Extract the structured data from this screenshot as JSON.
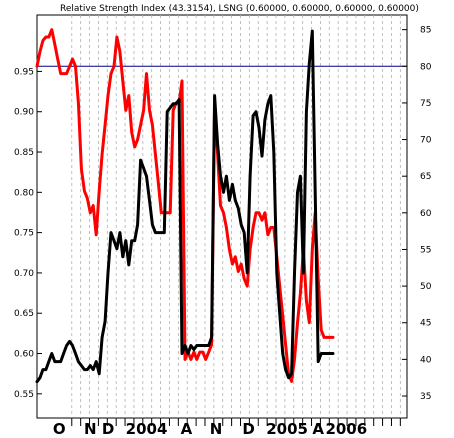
{
  "chart_data": {
    "type": "line",
    "title": "Relative Strength Index (43.3154), LSNG (0.60000, 0.60000, 0.60000, 0.60000)",
    "left_axis": {
      "ticks": [
        "0.55",
        "0.60",
        "0.65",
        "0.70",
        "0.75",
        "0.80",
        "0.85",
        "0.90",
        "0.95"
      ],
      "ylim": [
        0.52,
        1.02
      ]
    },
    "right_axis": {
      "ticks": [
        "35",
        "40",
        "45",
        "50",
        "55",
        "60",
        "65",
        "70",
        "75",
        "80",
        "85"
      ],
      "ylim": [
        32,
        87
      ]
    },
    "x_labels": [
      "O",
      "N",
      "D",
      "2004",
      "A",
      "N",
      "D",
      "2005",
      "A",
      "2006"
    ],
    "reference_line": {
      "axis": "right",
      "value": 80,
      "color": "#00008b"
    },
    "series": [
      {
        "axis": "right",
        "color": "#ff0000",
        "points": [
          [
            0,
            80
          ],
          [
            2,
            82
          ],
          [
            4,
            83.5
          ],
          [
            6,
            84
          ],
          [
            8,
            84
          ],
          [
            10,
            85
          ],
          [
            12,
            83
          ],
          [
            14,
            81
          ],
          [
            16,
            79
          ],
          [
            18,
            79
          ],
          [
            20,
            79
          ],
          [
            22,
            80
          ],
          [
            24,
            81
          ],
          [
            26,
            80
          ],
          [
            28,
            75
          ],
          [
            30,
            66
          ],
          [
            32,
            63
          ],
          [
            34,
            62
          ],
          [
            36,
            60
          ],
          [
            38,
            61
          ],
          [
            40,
            57
          ],
          [
            42,
            63
          ],
          [
            44,
            68
          ],
          [
            46,
            72
          ],
          [
            48,
            76
          ],
          [
            50,
            79
          ],
          [
            52,
            80
          ],
          [
            54,
            84
          ],
          [
            56,
            82
          ],
          [
            58,
            78
          ],
          [
            60,
            74
          ],
          [
            62,
            76
          ],
          [
            64,
            71
          ],
          [
            66,
            69
          ],
          [
            68,
            70
          ],
          [
            70,
            72
          ],
          [
            72,
            74
          ],
          [
            74,
            79
          ],
          [
            76,
            74
          ],
          [
            78,
            72
          ],
          [
            80,
            68
          ],
          [
            82,
            64
          ],
          [
            84,
            60
          ],
          [
            86,
            60
          ],
          [
            88,
            60
          ],
          [
            90,
            60
          ],
          [
            92,
            74
          ],
          [
            94,
            75
          ],
          [
            96,
            75
          ],
          [
            98,
            78
          ],
          [
            100,
            40
          ],
          [
            102,
            41
          ],
          [
            104,
            40
          ],
          [
            106,
            41
          ],
          [
            108,
            40
          ],
          [
            110,
            41
          ],
          [
            112,
            41
          ],
          [
            114,
            40
          ],
          [
            116,
            41
          ],
          [
            118,
            42
          ],
          [
            120,
            75
          ],
          [
            122,
            68
          ],
          [
            124,
            61
          ],
          [
            126,
            60
          ],
          [
            128,
            58
          ],
          [
            130,
            55
          ],
          [
            132,
            53
          ],
          [
            134,
            54
          ],
          [
            136,
            52
          ],
          [
            138,
            53
          ],
          [
            140,
            51
          ],
          [
            142,
            50
          ],
          [
            144,
            55
          ],
          [
            146,
            58
          ],
          [
            148,
            60
          ],
          [
            150,
            60
          ],
          [
            152,
            59
          ],
          [
            154,
            60
          ],
          [
            156,
            57
          ],
          [
            158,
            58
          ],
          [
            160,
            58
          ],
          [
            162,
            54
          ],
          [
            164,
            50
          ],
          [
            166,
            46
          ],
          [
            168,
            42
          ],
          [
            170,
            38
          ],
          [
            172,
            37
          ],
          [
            174,
            40
          ],
          [
            176,
            45
          ],
          [
            178,
            49
          ],
          [
            180,
            55
          ],
          [
            182,
            48
          ],
          [
            184,
            45
          ],
          [
            186,
            55
          ],
          [
            188,
            60
          ],
          [
            190,
            51
          ],
          [
            192,
            44
          ],
          [
            194,
            43
          ],
          [
            196,
            43
          ],
          [
            198,
            43
          ],
          [
            200,
            43
          ]
        ]
      },
      {
        "axis": "left",
        "color": "#000000",
        "points": [
          [
            0,
            0.565
          ],
          [
            2,
            0.57
          ],
          [
            4,
            0.58
          ],
          [
            6,
            0.58
          ],
          [
            8,
            0.59
          ],
          [
            10,
            0.6
          ],
          [
            12,
            0.59
          ],
          [
            14,
            0.59
          ],
          [
            16,
            0.59
          ],
          [
            18,
            0.6
          ],
          [
            20,
            0.61
          ],
          [
            22,
            0.615
          ],
          [
            24,
            0.61
          ],
          [
            26,
            0.6
          ],
          [
            28,
            0.59
          ],
          [
            30,
            0.585
          ],
          [
            32,
            0.58
          ],
          [
            34,
            0.58
          ],
          [
            36,
            0.585
          ],
          [
            38,
            0.58
          ],
          [
            40,
            0.59
          ],
          [
            42,
            0.575
          ],
          [
            44,
            0.62
          ],
          [
            46,
            0.64
          ],
          [
            48,
            0.7
          ],
          [
            50,
            0.75
          ],
          [
            52,
            0.74
          ],
          [
            54,
            0.73
          ],
          [
            56,
            0.75
          ],
          [
            58,
            0.72
          ],
          [
            60,
            0.74
          ],
          [
            62,
            0.71
          ],
          [
            64,
            0.74
          ],
          [
            66,
            0.74
          ],
          [
            68,
            0.76
          ],
          [
            70,
            0.84
          ],
          [
            72,
            0.83
          ],
          [
            74,
            0.82
          ],
          [
            76,
            0.79
          ],
          [
            78,
            0.76
          ],
          [
            80,
            0.75
          ],
          [
            82,
            0.75
          ],
          [
            84,
            0.75
          ],
          [
            86,
            0.75
          ],
          [
            88,
            0.9
          ],
          [
            90,
            0.905
          ],
          [
            92,
            0.91
          ],
          [
            94,
            0.91
          ],
          [
            96,
            0.915
          ],
          [
            98,
            0.6
          ],
          [
            100,
            0.61
          ],
          [
            102,
            0.6
          ],
          [
            104,
            0.61
          ],
          [
            106,
            0.605
          ],
          [
            108,
            0.61
          ],
          [
            110,
            0.61
          ],
          [
            112,
            0.61
          ],
          [
            114,
            0.61
          ],
          [
            116,
            0.61
          ],
          [
            118,
            0.62
          ],
          [
            120,
            0.92
          ],
          [
            122,
            0.86
          ],
          [
            124,
            0.82
          ],
          [
            126,
            0.8
          ],
          [
            128,
            0.82
          ],
          [
            130,
            0.79
          ],
          [
            132,
            0.81
          ],
          [
            134,
            0.79
          ],
          [
            136,
            0.78
          ],
          [
            138,
            0.76
          ],
          [
            140,
            0.75
          ],
          [
            142,
            0.7
          ],
          [
            144,
            0.82
          ],
          [
            146,
            0.895
          ],
          [
            148,
            0.9
          ],
          [
            150,
            0.88
          ],
          [
            152,
            0.845
          ],
          [
            154,
            0.89
          ],
          [
            156,
            0.91
          ],
          [
            158,
            0.92
          ],
          [
            160,
            0.85
          ],
          [
            162,
            0.7
          ],
          [
            164,
            0.65
          ],
          [
            166,
            0.6
          ],
          [
            168,
            0.58
          ],
          [
            170,
            0.57
          ],
          [
            172,
            0.575
          ],
          [
            174,
            0.7
          ],
          [
            176,
            0.8
          ],
          [
            178,
            0.82
          ],
          [
            180,
            0.7
          ],
          [
            182,
            0.9
          ],
          [
            184,
            0.96
          ],
          [
            186,
            1.0
          ],
          [
            188,
            0.8
          ],
          [
            190,
            0.59
          ],
          [
            192,
            0.6
          ],
          [
            194,
            0.6
          ],
          [
            196,
            0.6
          ],
          [
            198,
            0.6
          ],
          [
            200,
            0.6
          ]
        ]
      }
    ],
    "xlim": [
      0,
      250
    ],
    "grid": "vertical dotted"
  }
}
